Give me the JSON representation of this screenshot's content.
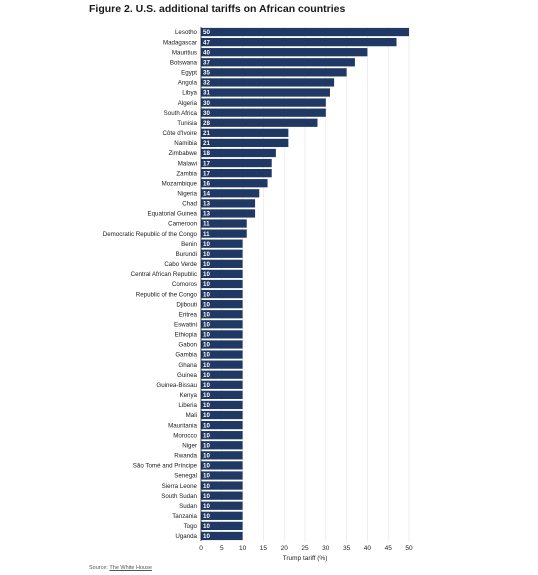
{
  "title": "Figure 2. U.S. additional tariffs on African countries",
  "source": {
    "label": "Source:",
    "link_text": "The White House"
  },
  "colors": {
    "bar": "#203864",
    "bar_label": "#ffffff",
    "grid": "#e3e3e3",
    "axis": "#222222"
  },
  "chart_data": {
    "type": "bar",
    "orientation": "horizontal",
    "title": "Figure 2. U.S. additional tariffs on African countries",
    "xlabel": "Trump tariff (%)",
    "ylabel": "",
    "xlim": [
      0,
      52
    ],
    "xticks": [
      0,
      5,
      10,
      15,
      20,
      25,
      30,
      35,
      40,
      45,
      50
    ],
    "grid": true,
    "categories": [
      "Lesotho",
      "Madagascar",
      "Mauritius",
      "Botswana",
      "Egypt",
      "Angola",
      "Libya",
      "Algeria",
      "South Africa",
      "Tunisia",
      "Côte d'Ivoire",
      "Namibia",
      "Zimbabwe",
      "Malawi",
      "Zambia",
      "Mozambique",
      "Nigeria",
      "Chad",
      "Equatorial Guinea",
      "Cameroon",
      "Democratic Republic of the Congo",
      "Benin",
      "Burundi",
      "Cabo Verde",
      "Central African Republic",
      "Comoros",
      "Republic of the Congo",
      "Djibouti",
      "Eritrea",
      "Eswatini",
      "Ethiopia",
      "Gabon",
      "Gambia",
      "Ghana",
      "Guinea",
      "Guinea-Bissau",
      "Kenya",
      "Liberia",
      "Mali",
      "Mauritania",
      "Morocco",
      "Niger",
      "Rwanda",
      "São Tomé and Príncipe",
      "Senegal",
      "Sierra Leone",
      "South Sudan",
      "Sudan",
      "Tanzania",
      "Togo",
      "Uganda"
    ],
    "values": [
      50,
      47,
      40,
      37,
      35,
      32,
      31,
      30,
      30,
      28,
      21,
      21,
      18,
      17,
      17,
      16,
      14,
      13,
      13,
      11,
      11,
      10,
      10,
      10,
      10,
      10,
      10,
      10,
      10,
      10,
      10,
      10,
      10,
      10,
      10,
      10,
      10,
      10,
      10,
      10,
      10,
      10,
      10,
      10,
      10,
      10,
      10,
      10,
      10,
      10,
      10
    ]
  }
}
